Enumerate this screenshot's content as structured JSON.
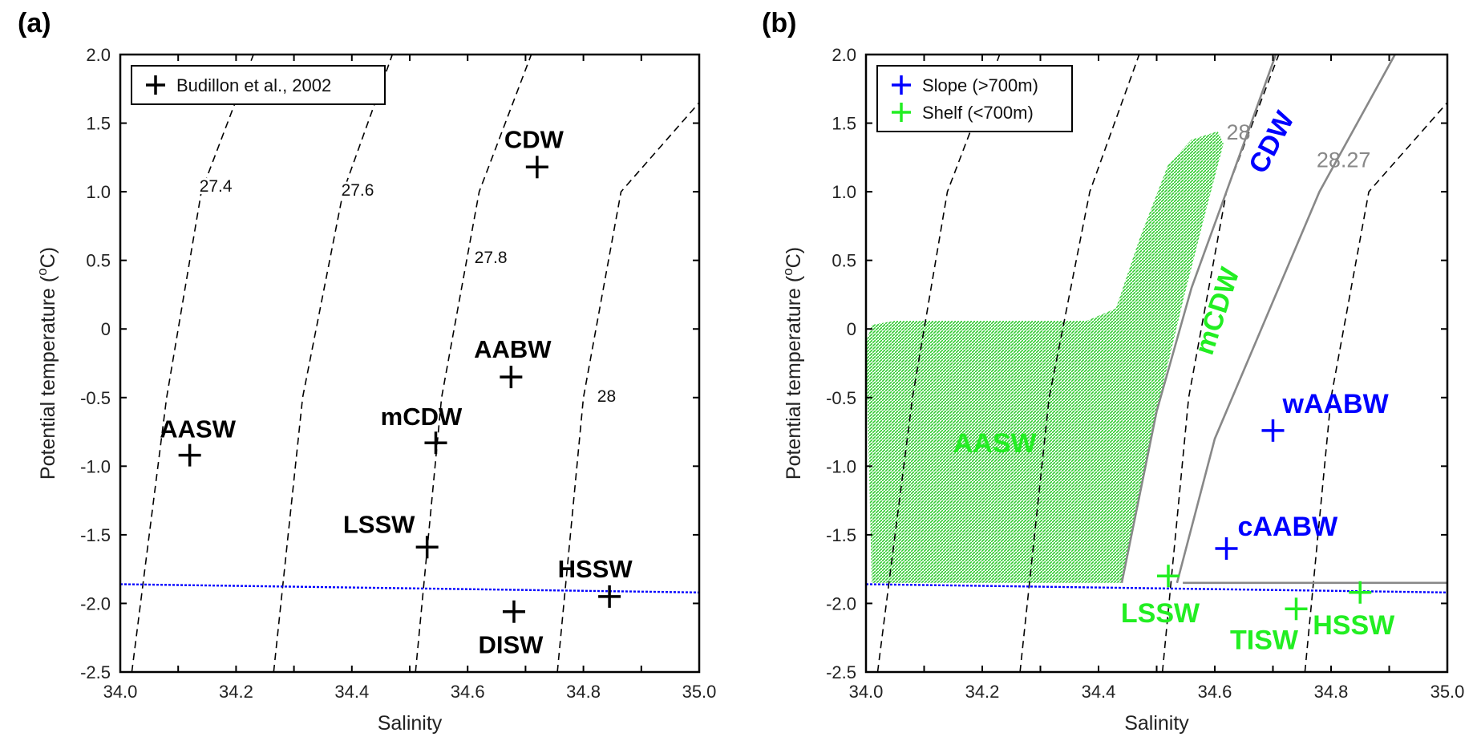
{
  "panel_labels": [
    "(a)",
    "(b)"
  ],
  "chart_data": [
    {
      "type": "scatter",
      "panel": "(a)",
      "xlabel": "Salinity",
      "ylabel": "Potential temperature (°C)",
      "ylabel_parts": {
        "main": "Potential temperature (",
        "sup": "o",
        "unit": "C)"
      },
      "xlim": [
        34.0,
        35.0
      ],
      "ylim": [
        -2.5,
        2.0
      ],
      "xticks": [
        "34.0",
        "34.2",
        "34.4",
        "34.6",
        "34.8",
        "35.0"
      ],
      "yticks": [
        "2.0",
        "1.5",
        "1.0",
        "0.5",
        "0",
        "-0.5",
        "-1.0",
        "-1.5",
        "-2.0",
        "-2.5"
      ],
      "legend": {
        "position": "top-left",
        "entries": [
          {
            "label": "Budillon et al., 2002",
            "color": "#000000"
          }
        ]
      },
      "freezing_line": {
        "color": "#0000ff",
        "points": [
          [
            34.0,
            -1.86
          ],
          [
            35.0,
            -1.92
          ]
        ]
      },
      "isopycnals": [
        {
          "label": "27.4",
          "points": [
            [
              34.02,
              -2.5
            ],
            [
              34.08,
              -0.5
            ],
            [
              34.14,
              1.0
            ],
            [
              34.23,
              2.0
            ]
          ]
        },
        {
          "label": "27.6",
          "points": [
            [
              34.265,
              -2.5
            ],
            [
              34.315,
              -0.5
            ],
            [
              34.385,
              1.0
            ],
            [
              34.47,
              2.0
            ]
          ]
        },
        {
          "label": "27.8",
          "points": [
            [
              34.51,
              -2.5
            ],
            [
              34.555,
              -0.5
            ],
            [
              34.62,
              1.0
            ],
            [
              34.71,
              2.0
            ]
          ]
        },
        {
          "label": "28",
          "points": [
            [
              34.755,
              -2.5
            ],
            [
              34.8,
              -0.5
            ],
            [
              34.865,
              1.0
            ],
            [
              35.0,
              1.65
            ]
          ]
        }
      ],
      "isopycnal_labels": [
        {
          "text": "27.4",
          "x": 34.165,
          "y": 1.0
        },
        {
          "text": "27.6",
          "x": 34.41,
          "y": 0.97
        },
        {
          "text": "27.8",
          "x": 34.64,
          "y": 0.48
        },
        {
          "text": "28",
          "x": 34.84,
          "y": -0.53
        }
      ],
      "points": [
        {
          "label": "CDW",
          "x": 34.72,
          "y": 1.18
        },
        {
          "label": "AABW",
          "x": 34.675,
          "y": -0.35
        },
        {
          "label": "mCDW",
          "x": 34.545,
          "y": -0.83
        },
        {
          "label": "AASW",
          "x": 34.12,
          "y": -0.92
        },
        {
          "label": "LSSW",
          "x": 34.53,
          "y": -1.59
        },
        {
          "label": "HSSW",
          "x": 34.845,
          "y": -1.95
        },
        {
          "label": "DISW",
          "x": 34.68,
          "y": -2.06
        }
      ],
      "point_color": "#000000"
    },
    {
      "type": "scatter",
      "panel": "(b)",
      "xlabel": "Salinity",
      "ylabel": "Potential temperature (°C)",
      "ylabel_parts": {
        "main": "Potential temperature (",
        "sup": "o",
        "unit": "C)"
      },
      "xlim": [
        34.0,
        35.0
      ],
      "ylim": [
        -2.5,
        2.0
      ],
      "xticks": [
        "34.0",
        "34.2",
        "34.4",
        "34.6",
        "34.8",
        "35.0"
      ],
      "yticks": [
        "2.0",
        "1.5",
        "1.0",
        "0.5",
        "0",
        "-0.5",
        "-1.0",
        "-1.5",
        "-2.0",
        "-2.5"
      ],
      "legend": {
        "position": "top-left",
        "entries": [
          {
            "label": "Slope (>700m)",
            "color": "#0000ff"
          },
          {
            "label": "Shelf (<700m)",
            "color": "#22ee22"
          }
        ]
      },
      "freezing_line": {
        "color": "#0000ff",
        "points": [
          [
            34.0,
            -1.86
          ],
          [
            35.0,
            -1.92
          ]
        ]
      },
      "isopycnals": [
        {
          "label": "",
          "points": [
            [
              34.02,
              -2.5
            ],
            [
              34.08,
              -0.5
            ],
            [
              34.14,
              1.0
            ],
            [
              34.23,
              2.0
            ]
          ]
        },
        {
          "label": "",
          "points": [
            [
              34.265,
              -2.5
            ],
            [
              34.315,
              -0.5
            ],
            [
              34.385,
              1.0
            ],
            [
              34.47,
              2.0
            ]
          ]
        },
        {
          "label": "",
          "points": [
            [
              34.51,
              -2.5
            ],
            [
              34.555,
              -0.5
            ],
            [
              34.62,
              1.0
            ],
            [
              34.71,
              2.0
            ]
          ]
        },
        {
          "label": "",
          "points": [
            [
              34.755,
              -2.5
            ],
            [
              34.8,
              -0.5
            ],
            [
              34.865,
              1.0
            ],
            [
              35.0,
              1.65
            ]
          ]
        }
      ],
      "boundaries": [
        {
          "label": "28",
          "color": "#888888",
          "points": [
            [
              34.44,
              -1.85
            ],
            [
              34.5,
              -0.6
            ],
            [
              34.56,
              0.3
            ],
            [
              34.62,
              1.0
            ],
            [
              34.705,
              2.0
            ]
          ]
        },
        {
          "label": "28.27",
          "color": "#888888",
          "points": [
            [
              34.535,
              -1.85
            ],
            [
              34.6,
              -0.8
            ],
            [
              34.68,
              0.0
            ],
            [
              34.78,
              1.0
            ],
            [
              34.91,
              2.0
            ]
          ]
        },
        {
          "label": "",
          "color": "#888888",
          "points": [
            [
              34.545,
              -1.85
            ],
            [
              35.0,
              -1.85
            ]
          ]
        }
      ],
      "boundary_labels": [
        {
          "text": "28",
          "x": 34.62,
          "y": 1.38
        },
        {
          "text": "28.27",
          "x": 34.775,
          "y": 1.18
        }
      ],
      "aasw_region": {
        "color": "#33cc33",
        "outline": [
          [
            34.01,
            -1.85
          ],
          [
            34.44,
            -1.85
          ],
          [
            34.5,
            -0.6
          ],
          [
            34.545,
            0.2
          ],
          [
            34.59,
            0.95
          ],
          [
            34.615,
            1.35
          ],
          [
            34.605,
            1.44
          ],
          [
            34.56,
            1.38
          ],
          [
            34.52,
            1.2
          ],
          [
            34.47,
            0.65
          ],
          [
            34.43,
            0.15
          ],
          [
            34.38,
            0.06
          ],
          [
            34.2,
            0.06
          ],
          [
            34.05,
            0.06
          ],
          [
            34.01,
            0.03
          ],
          [
            34.0,
            -0.1
          ]
        ]
      },
      "water_masses": [
        {
          "label": "AASW",
          "x": 34.15,
          "y": -0.9,
          "color": "#22ee22",
          "rotate": 0
        },
        {
          "label": "mCDW",
          "x": 34.595,
          "y": -0.2,
          "color": "#22ee22",
          "rotate": -72
        },
        {
          "label": "CDW",
          "x": 34.685,
          "y": 1.12,
          "color": "#0000ff",
          "rotate": -62
        }
      ],
      "slope_points": [
        {
          "label": "wAABW",
          "x": 34.7,
          "y": -0.74
        },
        {
          "label": "cAABW",
          "x": 34.62,
          "y": -1.6
        }
      ],
      "shelf_points": [
        {
          "label": "LSSW",
          "x": 34.52,
          "y": -1.8
        },
        {
          "label": "TISW",
          "x": 34.74,
          "y": -2.04
        },
        {
          "label": "HSSW",
          "x": 34.85,
          "y": -1.92
        }
      ],
      "slope_color": "#0000ff",
      "shelf_color": "#22ee22"
    }
  ]
}
